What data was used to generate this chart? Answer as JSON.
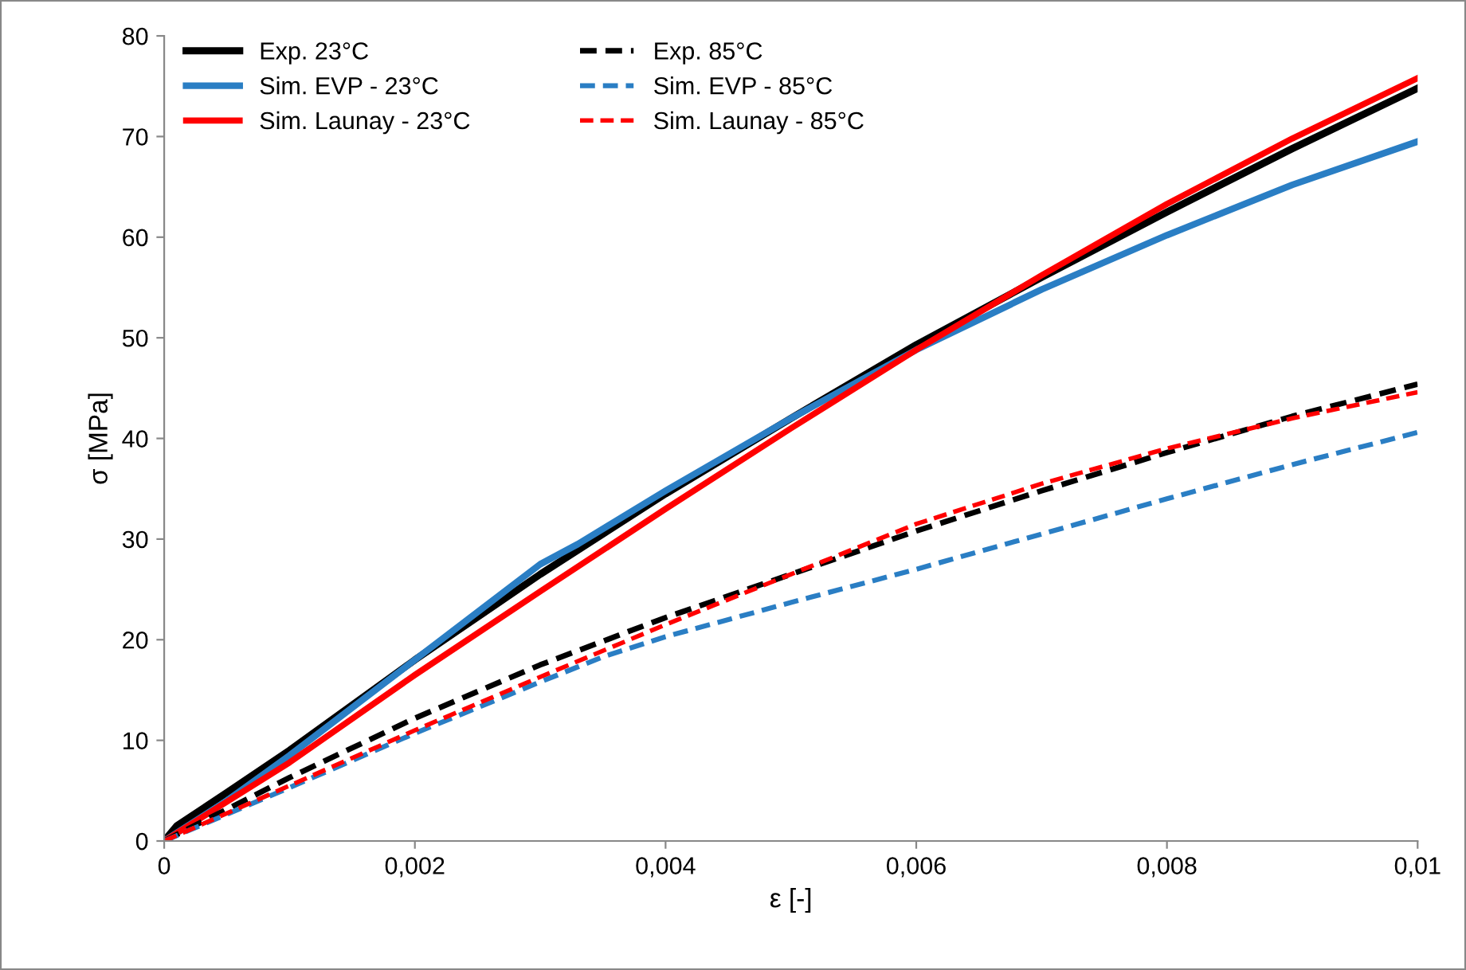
{
  "chart_data": {
    "type": "line",
    "xlabel": "ε [-]",
    "ylabel": "σ [MPa]",
    "xlim": [
      0,
      0.01
    ],
    "ylim": [
      0,
      80
    ],
    "xticks": [
      {
        "value": 0,
        "label": "0"
      },
      {
        "value": 0.002,
        "label": "0,002"
      },
      {
        "value": 0.004,
        "label": "0,004"
      },
      {
        "value": 0.006,
        "label": "0,006"
      },
      {
        "value": 0.008,
        "label": "0,008"
      },
      {
        "value": 0.01,
        "label": "0,01"
      }
    ],
    "yticks": [
      0,
      10,
      20,
      30,
      40,
      50,
      60,
      70,
      80
    ],
    "grid": false,
    "legend": "top left",
    "marker": "none",
    "series": [
      {
        "name": "Exp. 23°C",
        "color": "#000000",
        "line_style": "solid",
        "x": [
          0,
          0.0001,
          0.0005,
          0.001,
          0.002,
          0.003,
          0.004,
          0.005,
          0.006,
          0.007,
          0.008,
          0.009,
          0.01
        ],
        "values": [
          0,
          1.5,
          4.8,
          9,
          18,
          26.5,
          34.5,
          42,
          49.3,
          56,
          62.5,
          68.8,
          74.8
        ]
      },
      {
        "name": "Sim. EVP - 23°C",
        "color": "#2a7ec4",
        "line_style": "solid",
        "x": [
          0,
          0.0005,
          0.001,
          0.002,
          0.003,
          0.0033,
          0.004,
          0.005,
          0.006,
          0.007,
          0.008,
          0.009,
          0.01
        ],
        "values": [
          0,
          4,
          8.5,
          18,
          27.5,
          29.5,
          34.8,
          42,
          48.8,
          54.8,
          60.2,
          65.2,
          69.5
        ]
      },
      {
        "name": "Sim. Launay - 23°C",
        "color": "#ff0000",
        "line_style": "solid",
        "x": [
          0,
          0.001,
          0.002,
          0.003,
          0.004,
          0.005,
          0.006,
          0.007,
          0.008,
          0.009,
          0.01
        ],
        "values": [
          0,
          7.8,
          16.5,
          24.8,
          33,
          41,
          48.8,
          56.2,
          63.3,
          69.8,
          75.8
        ]
      },
      {
        "name": "Exp. 85°C",
        "color": "#000000",
        "line_style": "dashed",
        "x": [
          0,
          0.001,
          0.002,
          0.003,
          0.004,
          0.005,
          0.006,
          0.007,
          0.008,
          0.009,
          0.01
        ],
        "values": [
          0,
          6.3,
          12.2,
          17.5,
          22.2,
          26.5,
          30.8,
          34.8,
          38.6,
          42.2,
          45.4
        ]
      },
      {
        "name": "Sim. EVP - 85°C",
        "color": "#2a7ec4",
        "line_style": "dashed",
        "x": [
          0,
          0.001,
          0.002,
          0.003,
          0.0035,
          0.004,
          0.005,
          0.006,
          0.007,
          0.008,
          0.009,
          0.01
        ],
        "values": [
          0,
          5.3,
          10.7,
          15.8,
          18.3,
          20.3,
          23.7,
          27,
          30.5,
          34,
          37.4,
          40.6
        ]
      },
      {
        "name": "Sim. Launay - 85°C",
        "color": "#ff0000",
        "line_style": "dashed",
        "x": [
          0,
          0.001,
          0.002,
          0.003,
          0.004,
          0.005,
          0.006,
          0.007,
          0.008,
          0.009,
          0.01
        ],
        "values": [
          0,
          5.5,
          11,
          16.3,
          21.5,
          26.5,
          31.5,
          35.5,
          39,
          42,
          44.6
        ]
      }
    ]
  }
}
